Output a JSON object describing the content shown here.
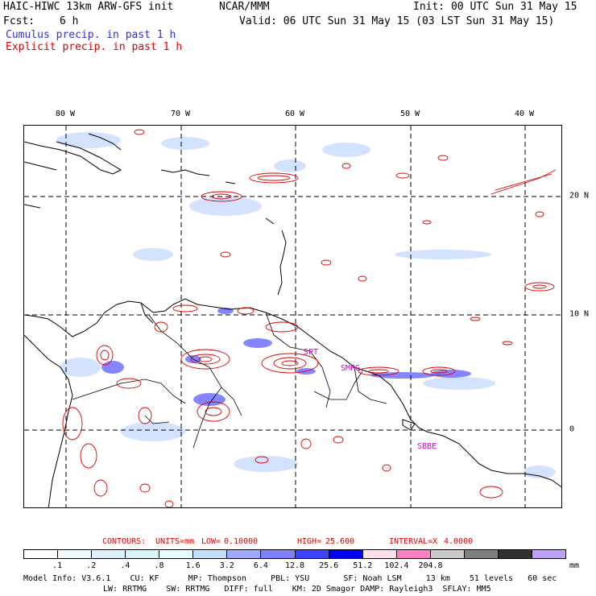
{
  "header": {
    "title_left": "HAIC-HIWC 13km ARW-GFS init",
    "org": "NCAR/MMM",
    "init": "Init: 00 UTC Sun 31 May 15",
    "fcst_label": "Fcst:",
    "fcst_value": "6 h",
    "valid": "Valid: 06 UTC Sun 31 May 15 (03 LST Sun 31 May 15)",
    "legend_cumulus": "Cumulus precip. in past 1 h",
    "legend_explicit": "Explicit precip. in past 1 h",
    "legend_cumulus_color": "#3333cc",
    "legend_explicit_color": "#dd0000"
  },
  "map": {
    "lon_labels": [
      "80 W",
      "70 W",
      "60 W",
      "50 W",
      "40 W"
    ],
    "lat_labels": [
      "20 N",
      "10 N",
      "0"
    ],
    "station_labels": [
      "SPT",
      "SMPG",
      "SBBE"
    ],
    "station_color": "#cc00cc"
  },
  "contours": {
    "text_contours": "CONTOURS:",
    "text_units": "UNITS=mm",
    "text_low": "LOW=",
    "low": "0.10000",
    "text_high": "HIGH=",
    "high": "25.600",
    "text_interval": "INTERVAL=X",
    "interval": "4.0000",
    "color": "#dd0000"
  },
  "colorbar": {
    "colors": [
      "#ffffff",
      "#f0f8ff",
      "#e0f0ff",
      "#d8f4f8",
      "#e8ffff",
      "#c8e0ff",
      "#a0a8ff",
      "#8080ff",
      "#4040ff",
      "#0000ff",
      "#ffe0e8",
      "#ff80c0",
      "#c8c8c8",
      "#808080",
      "#303030",
      "#c0a0ff"
    ],
    "ticks": [
      ".1",
      ".2",
      ".4",
      ".8",
      "1.6",
      "3.2",
      "6.4",
      "12.8",
      "25.6",
      "51.2",
      "102.4",
      "204.8"
    ],
    "units": "mm"
  },
  "model_info": {
    "line1": "Model Info: V3.6.1    CU: KF      MP: Thompson     PBL: YSU       SF: Noah LSM     13 km    51 levels   60 sec",
    "line2": "LW: RRTMG    SW: RRTMG   DIFF: full    KM: 2D Smagor DAMP: Rayleigh3  SFLAY: MM5"
  }
}
